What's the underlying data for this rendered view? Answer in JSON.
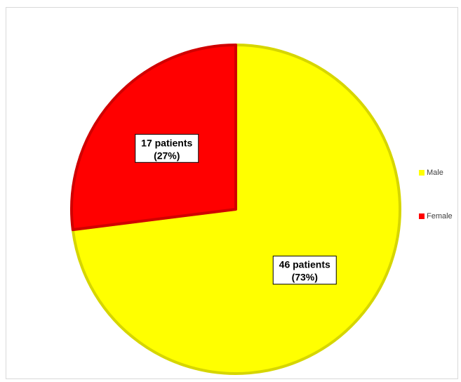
{
  "chart_data": {
    "type": "pie",
    "title": "",
    "categories": [
      "Male",
      "Female"
    ],
    "values": [
      46,
      17
    ],
    "percentages": [
      73,
      27
    ],
    "colors": [
      "#ffff00",
      "#ff0000"
    ],
    "edge_colors": [
      "#d6d600",
      "#d00000"
    ],
    "data_labels": [
      {
        "line1": "46 patients",
        "line2": "(73%)"
      },
      {
        "line1": "17 patients",
        "line2": "(27%)"
      }
    ],
    "legend": {
      "placement": "right",
      "entries": [
        "Male",
        "Female"
      ]
    }
  }
}
